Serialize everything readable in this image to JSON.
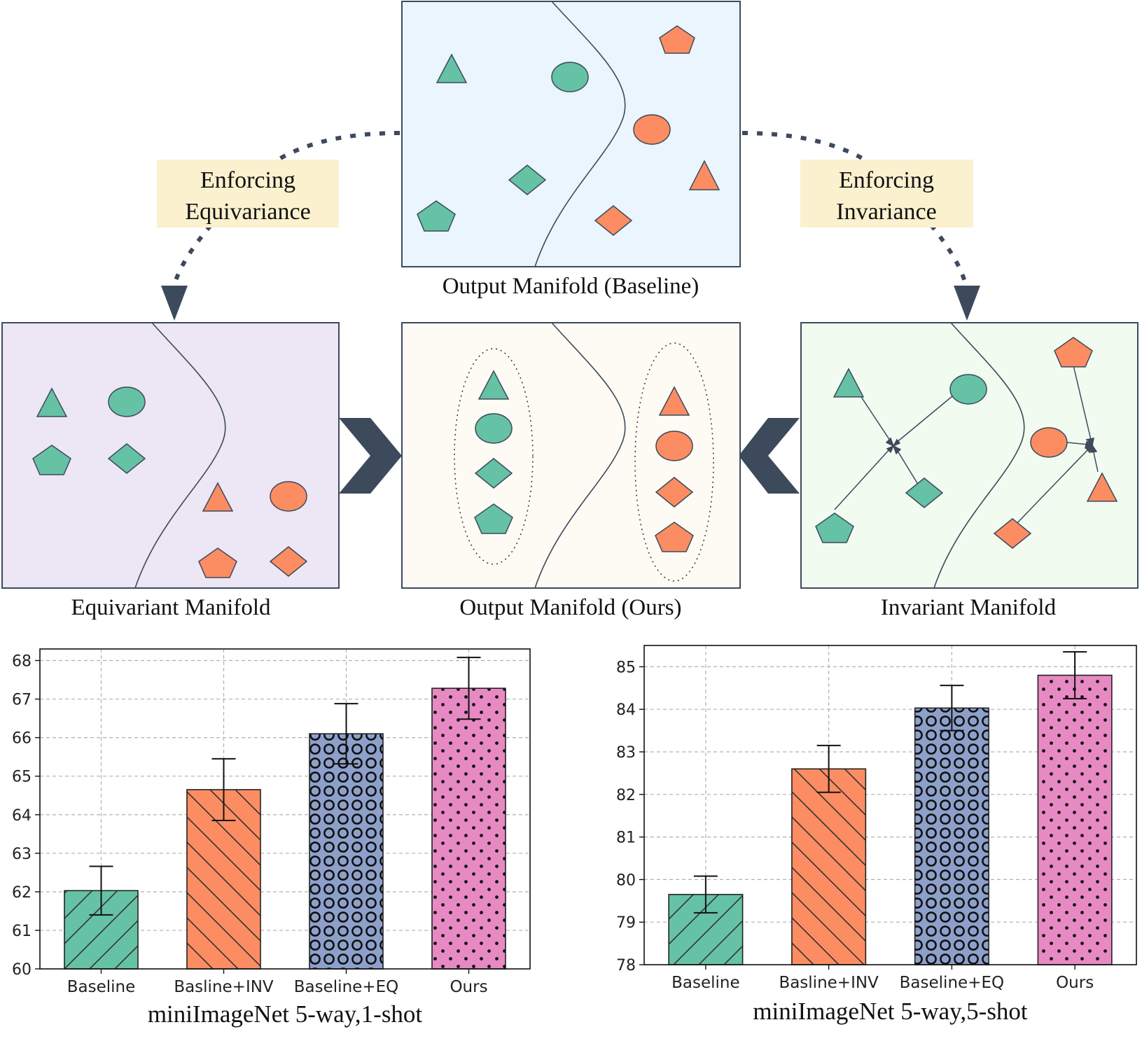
{
  "diagram": {
    "baseline_panel_label": "Output Manifold (Baseline)",
    "equivariant_panel_label": "Equivariant Manifold",
    "ours_panel_label": "Output Manifold (Ours)",
    "invariant_panel_label": "Invariant Manifold",
    "equivariance_label": [
      "Enforcing",
      "Equivariance"
    ],
    "invariance_label": [
      "Enforcing",
      "Invariance"
    ],
    "colors": {
      "class_a": "#66c2a5",
      "class_b": "#fc8d62",
      "baseline_bg": "#eaf5fd",
      "equivariant_bg": "#ece6f5",
      "ours_bg": "#fdfbf4",
      "invariant_bg": "#f1fbf0",
      "label_box": "#fbf1cf",
      "arrow": "#3d4a5c"
    }
  },
  "chart_data": [
    {
      "type": "bar",
      "title": "miniImageNet 5-way,1-shot",
      "categories": [
        "Baseline",
        "Basline+INV",
        "Baseline+EQ",
        "Ours"
      ],
      "values": [
        62.03,
        64.65,
        66.1,
        67.28
      ],
      "errors": [
        0.63,
        0.8,
        0.78,
        0.8
      ],
      "ylim": [
        60,
        68.3
      ],
      "yticks": [
        "60",
        "61",
        "62",
        "63",
        "64",
        "65",
        "66",
        "67",
        "68"
      ],
      "colors": [
        "#66c2a5",
        "#fc8d62",
        "#8da0cb",
        "#e78ac3"
      ],
      "hatches": [
        "diagonal-up",
        "diagonal-down",
        "circles",
        "dots"
      ],
      "grid": true
    },
    {
      "type": "bar",
      "title": "miniImageNet 5-way,5-shot",
      "categories": [
        "Baseline",
        "Basline+INV",
        "Baseline+EQ",
        "Ours"
      ],
      "values": [
        79.65,
        82.6,
        84.03,
        84.8
      ],
      "errors": [
        0.43,
        0.55,
        0.53,
        0.55
      ],
      "ylim": [
        78,
        85.5
      ],
      "yticks": [
        "78",
        "79",
        "80",
        "81",
        "82",
        "83",
        "84",
        "85"
      ],
      "colors": [
        "#66c2a5",
        "#fc8d62",
        "#8da0cb",
        "#e78ac3"
      ],
      "hatches": [
        "diagonal-up",
        "diagonal-down",
        "circles",
        "dots"
      ],
      "grid": true
    }
  ]
}
